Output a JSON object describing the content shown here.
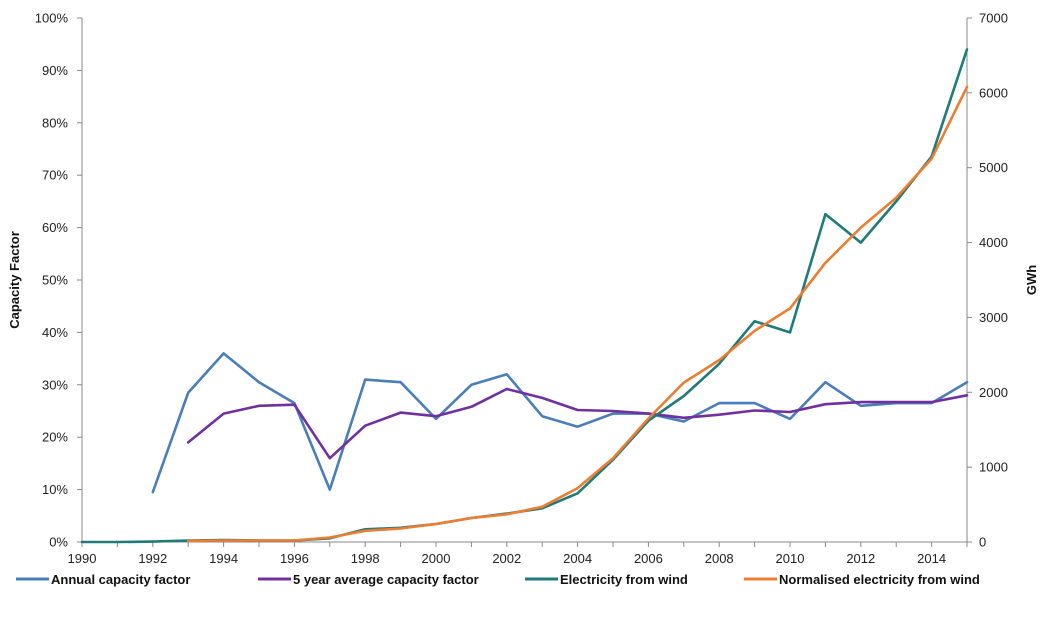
{
  "chart_data": {
    "type": "line",
    "x_range": [
      1990,
      2015
    ],
    "x_ticks": [
      "1990",
      "1992",
      "1994",
      "1996",
      "1998",
      "2000",
      "2002",
      "2004",
      "2006",
      "2008",
      "2010",
      "2012",
      "2014"
    ],
    "y_left": {
      "label": "Capacity Factor",
      "range": [
        0,
        1
      ],
      "ticks": [
        "0%",
        "10%",
        "20%",
        "30%",
        "40%",
        "50%",
        "60%",
        "70%",
        "80%",
        "90%",
        "100%"
      ]
    },
    "y_right": {
      "label": "GWh",
      "range": [
        0,
        7000
      ],
      "ticks": [
        "0",
        "1000",
        "2000",
        "3000",
        "4000",
        "5000",
        "6000",
        "7000"
      ]
    },
    "grid": false,
    "legend_position": "bottom",
    "series": [
      {
        "name": "Annual capacity factor",
        "axis": "left",
        "color": "#4a7ebb",
        "x": [
          1992,
          1993,
          1994,
          1995,
          1996,
          1997,
          1998,
          1999,
          2000,
          2001,
          2002,
          2003,
          2004,
          2005,
          2006,
          2007,
          2008,
          2009,
          2010,
          2011,
          2012,
          2013,
          2014,
          2015
        ],
        "y": [
          0.095,
          0.285,
          0.36,
          0.305,
          0.265,
          0.1,
          0.31,
          0.305,
          0.235,
          0.3,
          0.32,
          0.24,
          0.22,
          0.245,
          0.245,
          0.23,
          0.265,
          0.265,
          0.235,
          0.305,
          0.26,
          0.265,
          0.265,
          0.305
        ]
      },
      {
        "name": "5 year average capacity factor",
        "axis": "left",
        "color": "#7030a0",
        "x": [
          1993,
          1994,
          1995,
          1996,
          1997,
          1998,
          1999,
          2000,
          2001,
          2002,
          2003,
          2004,
          2005,
          2006,
          2007,
          2008,
          2009,
          2010,
          2011,
          2012,
          2013,
          2014,
          2015
        ],
        "y": [
          0.19,
          0.245,
          0.26,
          0.262,
          0.16,
          0.222,
          0.247,
          0.24,
          0.258,
          0.292,
          0.275,
          0.252,
          0.25,
          0.245,
          0.237,
          0.243,
          0.251,
          0.248,
          0.263,
          0.267,
          0.267,
          0.267,
          0.28
        ]
      },
      {
        "name": "Electricity from wind",
        "axis": "right",
        "color": "#1f7a7a",
        "x": [
          1990,
          1991,
          1992,
          1993,
          1994,
          1995,
          1996,
          1997,
          1998,
          1999,
          2000,
          2001,
          2002,
          2003,
          2004,
          2005,
          2006,
          2007,
          2008,
          2009,
          2010,
          2011,
          2012,
          2013,
          2014,
          2015
        ],
        "y": [
          0,
          0,
          5,
          20,
          25,
          20,
          20,
          50,
          170,
          190,
          240,
          320,
          380,
          450,
          650,
          1100,
          1620,
          1950,
          2380,
          2950,
          2800,
          4380,
          4000,
          4550,
          5150,
          6580
        ]
      },
      {
        "name": "Normalised electricity from wind",
        "axis": "right",
        "color": "#ed7d31",
        "x": [
          1993,
          1994,
          1995,
          1996,
          1997,
          1998,
          1999,
          2000,
          2001,
          2002,
          2003,
          2004,
          2005,
          2006,
          2007,
          2008,
          2009,
          2010,
          2011,
          2012,
          2013,
          2014,
          2015
        ],
        "y": [
          15,
          20,
          20,
          20,
          60,
          150,
          180,
          240,
          320,
          370,
          470,
          720,
          1120,
          1650,
          2130,
          2430,
          2820,
          3120,
          3730,
          4200,
          4600,
          5120,
          6080
        ]
      }
    ]
  }
}
